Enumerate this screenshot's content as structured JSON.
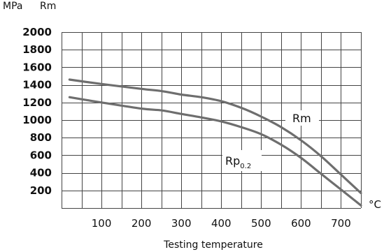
{
  "chart_data": {
    "type": "line",
    "title": "",
    "ylabel_unit": "MPa",
    "ylabel_name": "Rm",
    "xlabel": "Testing temperature",
    "x_unit": "°C",
    "xlim": [
      0,
      750
    ],
    "ylim": [
      0,
      2000
    ],
    "x_ticks": [
      100,
      200,
      300,
      400,
      500,
      600,
      700
    ],
    "y_ticks": [
      200,
      400,
      600,
      800,
      1000,
      1200,
      1400,
      1600,
      1800,
      2000
    ],
    "x_grid_step": 50,
    "y_grid_step": 200,
    "grid": true,
    "series": [
      {
        "name": "Rm",
        "annotation": "Rm",
        "x": [
          20,
          100,
          200,
          250,
          300,
          350,
          400,
          450,
          500,
          550,
          600,
          650,
          700,
          750
        ],
        "y": [
          1460,
          1410,
          1355,
          1330,
          1290,
          1260,
          1215,
          1140,
          1040,
          920,
          770,
          590,
          380,
          170
        ]
      },
      {
        "name": "Rp0.2",
        "annotation_main": "Rp",
        "annotation_sub": "0.2",
        "x": [
          20,
          100,
          200,
          250,
          300,
          350,
          400,
          450,
          500,
          550,
          600,
          650,
          700,
          750
        ],
        "y": [
          1260,
          1200,
          1130,
          1110,
          1070,
          1030,
          985,
          920,
          840,
          720,
          570,
          390,
          210,
          30
        ]
      }
    ]
  }
}
